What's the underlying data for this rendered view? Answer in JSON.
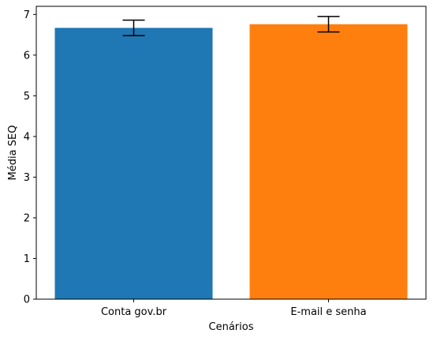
{
  "chart_data": {
    "type": "bar",
    "title": "",
    "xlabel": "Cenários",
    "ylabel": "Média SEQ",
    "categories": [
      "Conta gov.br",
      "E-mail e senha"
    ],
    "values": [
      6.67,
      6.76
    ],
    "errors": [
      0.19,
      0.19
    ],
    "colors": [
      "#1f77b4",
      "#ff7f0e"
    ],
    "ylim": [
      0,
      7.2
    ],
    "yticks": [
      0,
      1,
      2,
      3,
      4,
      5,
      6,
      7
    ],
    "grid": false,
    "legend": "none"
  }
}
